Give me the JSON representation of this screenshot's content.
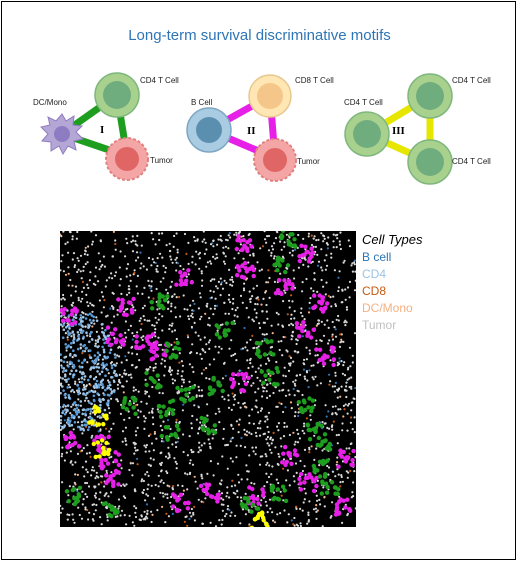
{
  "title": "Long-term survival discriminative motifs",
  "motifs": [
    {
      "label_a": "DC/Mono",
      "label_b": "CD4 T Cell",
      "label_c": "Tumor",
      "roman": "I"
    },
    {
      "label_a": "B Cell",
      "label_b": "CD8 T Cell",
      "label_c": "Tumor",
      "roman": "II"
    },
    {
      "label_a": "CD4 T Cell",
      "label_b": "CD4 T Cell",
      "label_c": "CD4 T Cell",
      "roman": "III"
    }
  ],
  "legend": {
    "title": "Cell Types",
    "items": [
      {
        "label": "B cell",
        "color": "#2E75B6"
      },
      {
        "label": "CD4",
        "color": "#9DC3E6"
      },
      {
        "label": "CD8",
        "color": "#C55A11"
      },
      {
        "label": "DC/Mono",
        "color": "#F4B183"
      },
      {
        "label": "Tumor",
        "color": "#BFBFBF"
      }
    ]
  },
  "colors": {
    "cd4": "#A9D18E",
    "cd4_core": "#70AD7E",
    "dc": "#B4A7D6",
    "tumor": "#F4A6A6",
    "tumor_core": "#E06666",
    "bcell": "#A9CCE3",
    "bcell_core": "#5B8FB0",
    "cd8": "#FFE6B3",
    "cd8_core": "#F4C68A",
    "edge_motif1": "#1E9E1E",
    "edge_motif2": "#E620E6",
    "edge_motif3": "#E6E600"
  }
}
